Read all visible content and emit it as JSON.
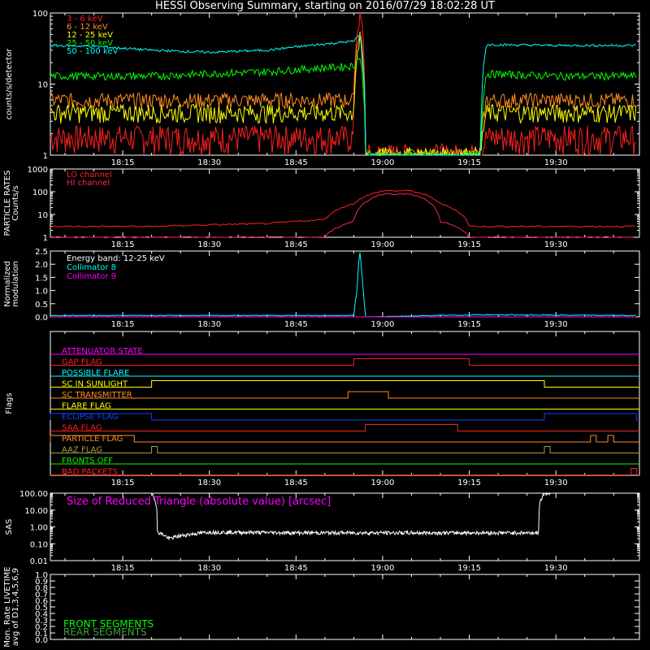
{
  "title": "HESSI Observing Summary, starting on 2016/07/29 18:02:28 UT",
  "time_ticks": [
    "18:15",
    "18:30",
    "18:45",
    "19:00",
    "19:15",
    "19:30"
  ],
  "colors": {
    "red": "#ff2020",
    "orange": "#ff8c20",
    "yellow": "#ffff00",
    "green": "#00ff00",
    "cyan": "#00ffff",
    "magenta": "#ff00ff",
    "crimson": "#ff2060",
    "blue": "#1040ff",
    "olive": "#a0a040",
    "white": "#ffffff",
    "darkgreen": "#40a040"
  },
  "chart_data": [
    {
      "id": "counts",
      "type": "line",
      "ylabel": "counts/s/detector",
      "yscale": "log",
      "ylim": [
        1,
        100
      ],
      "yticks": [
        "1",
        "10",
        "100"
      ],
      "x_unit": "UT",
      "x_range": [
        "18:02:28",
        "19:44:28"
      ],
      "series": [
        {
          "name": "3 - 6 keV",
          "color": "red",
          "x": [
            "18:02",
            "18:10",
            "18:20",
            "18:30",
            "18:40",
            "18:55",
            "18:56",
            "18:57",
            "19:17",
            "19:18",
            "19:30",
            "19:44"
          ],
          "y": [
            1.8,
            1.8,
            1.8,
            1.8,
            1.8,
            1.8,
            100,
            1,
            1,
            1.8,
            1.8,
            1.8
          ]
        },
        {
          "name": "6 - 12 keV",
          "color": "orange",
          "x": [
            "18:02",
            "18:10",
            "18:20",
            "18:30",
            "18:40",
            "18:55",
            "18:56",
            "18:57",
            "19:17",
            "19:18",
            "19:30",
            "19:44"
          ],
          "y": [
            6,
            6,
            6,
            6,
            6,
            6,
            60,
            1,
            1,
            6,
            6,
            6
          ]
        },
        {
          "name": "12 - 25 keV",
          "color": "yellow",
          "x": [
            "18:02",
            "18:10",
            "18:20",
            "18:30",
            "18:40",
            "18:55",
            "18:56",
            "18:57",
            "19:17",
            "19:18",
            "19:30",
            "19:44"
          ],
          "y": [
            4,
            4,
            4,
            4,
            4,
            4,
            40,
            1,
            1,
            4,
            4,
            4
          ]
        },
        {
          "name": "25 - 50 keV",
          "color": "green",
          "x": [
            "18:02",
            "18:10",
            "18:20",
            "18:30",
            "18:40",
            "18:55",
            "18:56",
            "18:57",
            "19:17",
            "19:18",
            "19:30",
            "19:44"
          ],
          "y": [
            13,
            13,
            13,
            14,
            15,
            18,
            25,
            1,
            1,
            14,
            13,
            13
          ]
        },
        {
          "name": "50 - 100 keV",
          "color": "cyan",
          "x": [
            "18:02",
            "18:10",
            "18:20",
            "18:30",
            "18:40",
            "18:55",
            "18:56",
            "18:57",
            "19:17",
            "19:18",
            "19:30",
            "19:44"
          ],
          "y": [
            35,
            34,
            30,
            28,
            30,
            40,
            50,
            1,
            1,
            36,
            35,
            35
          ]
        }
      ]
    },
    {
      "id": "particle",
      "type": "line",
      "ylabel": "PARTICLE RATES Counts/s",
      "yscale": "log",
      "ylim": [
        1,
        1000
      ],
      "yticks": [
        "1",
        "10",
        "100",
        "1000"
      ],
      "series": [
        {
          "name": "LO channel",
          "color": "red",
          "x": [
            "18:02",
            "18:20",
            "18:40",
            "18:50",
            "18:55",
            "19:00",
            "19:05",
            "19:10",
            "19:15",
            "19:30",
            "19:44"
          ],
          "y": [
            3,
            3,
            4,
            6,
            30,
            110,
            110,
            30,
            3,
            3,
            3
          ]
        },
        {
          "name": "HI channel",
          "color": "crimson",
          "x": [
            "18:02",
            "18:50",
            "18:55",
            "19:00",
            "19:05",
            "19:10",
            "19:15",
            "19:44"
          ],
          "y": [
            1,
            1,
            5,
            80,
            80,
            5,
            1,
            1
          ]
        }
      ]
    },
    {
      "id": "modulation",
      "type": "line",
      "ylabel": "Normalized modulation",
      "ylim": [
        0,
        2.5
      ],
      "yticks": [
        "0.0",
        "0.5",
        "1.0",
        "1.5",
        "2.0",
        "2.5"
      ],
      "annotation": "Energy band: 12-25 keV",
      "series": [
        {
          "name": "Collimator 8",
          "color": "cyan",
          "x": [
            "18:02",
            "18:55",
            "18:56",
            "18:57",
            "19:17",
            "19:44"
          ],
          "y": [
            0.05,
            0.05,
            2.35,
            0.0,
            0.08,
            0.05
          ]
        },
        {
          "name": "Collimator 9",
          "color": "magenta",
          "x": [
            "18:02",
            "19:44"
          ],
          "y": [
            0,
            0
          ]
        }
      ]
    },
    {
      "id": "flags",
      "type": "line",
      "ylabel": "Flags",
      "series": [
        {
          "name": "ATTENUATOR STATE",
          "color": "magenta",
          "segments": []
        },
        {
          "name": "GAP FLAG",
          "color": "red",
          "segments": [
            [
              "18:55",
              "19:15"
            ]
          ]
        },
        {
          "name": "POSSIBLE FLARE",
          "color": "cyan",
          "segments": []
        },
        {
          "name": "SC IN SUNLIGHT",
          "color": "yellow",
          "segments": [
            [
              "18:20",
              "19:28"
            ]
          ]
        },
        {
          "name": "SC TRANSMITTER",
          "color": "orange",
          "segments": [
            [
              "18:54",
              "19:01"
            ]
          ]
        },
        {
          "name": "FLARE FLAG",
          "color": "yellow",
          "segments": []
        },
        {
          "name": "ECLIPSE FLAG",
          "color": "blue",
          "segments": [
            [
              "18:02",
              "18:20"
            ],
            [
              "19:28",
              "19:44"
            ]
          ]
        },
        {
          "name": "SAA FLAG",
          "color": "red",
          "segments": [
            [
              "18:57",
              "19:13"
            ]
          ]
        },
        {
          "name": "PARTICLE FLAG",
          "color": "orange",
          "segments": [
            [
              "18:02",
              "18:17"
            ],
            [
              "19:36",
              "19:37"
            ],
            [
              "19:39",
              "19:40"
            ]
          ]
        },
        {
          "name": "AAZ FLAG",
          "color": "olive",
          "segments": [
            [
              "18:20",
              "18:21"
            ],
            [
              "19:28",
              "19:29"
            ]
          ]
        },
        {
          "name": "FRONTS OFF",
          "color": "green",
          "segments": []
        },
        {
          "name": "BAD PACKETS",
          "color": "red",
          "segments": [
            [
              "19:43",
              "19:44"
            ]
          ]
        }
      ]
    },
    {
      "id": "sas",
      "type": "line",
      "ylabel": "SAS",
      "yscale": "log",
      "ylim": [
        0.01,
        100
      ],
      "yticks": [
        "0.01",
        "0.10",
        "1.00",
        "10.00",
        "100.00"
      ],
      "annotation": "Size of Reduced Triangle (absolute value) [arcsec]",
      "series": [
        {
          "color": "white",
          "x": [
            "18:20",
            "18:21",
            "18:23",
            "18:25",
            "18:30",
            "18:45",
            "19:00",
            "19:15",
            "19:27",
            "19:28",
            "19:29"
          ],
          "y": [
            100,
            0.5,
            0.2,
            0.3,
            0.5,
            0.45,
            0.45,
            0.45,
            0.45,
            100,
            100
          ]
        }
      ]
    },
    {
      "id": "livetime",
      "type": "line",
      "ylabel": "Mon. Rate LIVETIME avg of D1,3,4,5,6,9",
      "ylim": [
        0,
        1.0
      ],
      "yticks": [
        "0.0",
        "0.1",
        "0.2",
        "0.3",
        "0.4",
        "0.5",
        "0.6",
        "0.7",
        "0.8",
        "0.9",
        "1.0"
      ],
      "series": [
        {
          "name": "FRONT SEGMENTS",
          "color": "green",
          "x": [],
          "y": []
        },
        {
          "name": "REAR SEGMENTS",
          "color": "darkgreen",
          "x": [],
          "y": []
        }
      ]
    }
  ]
}
